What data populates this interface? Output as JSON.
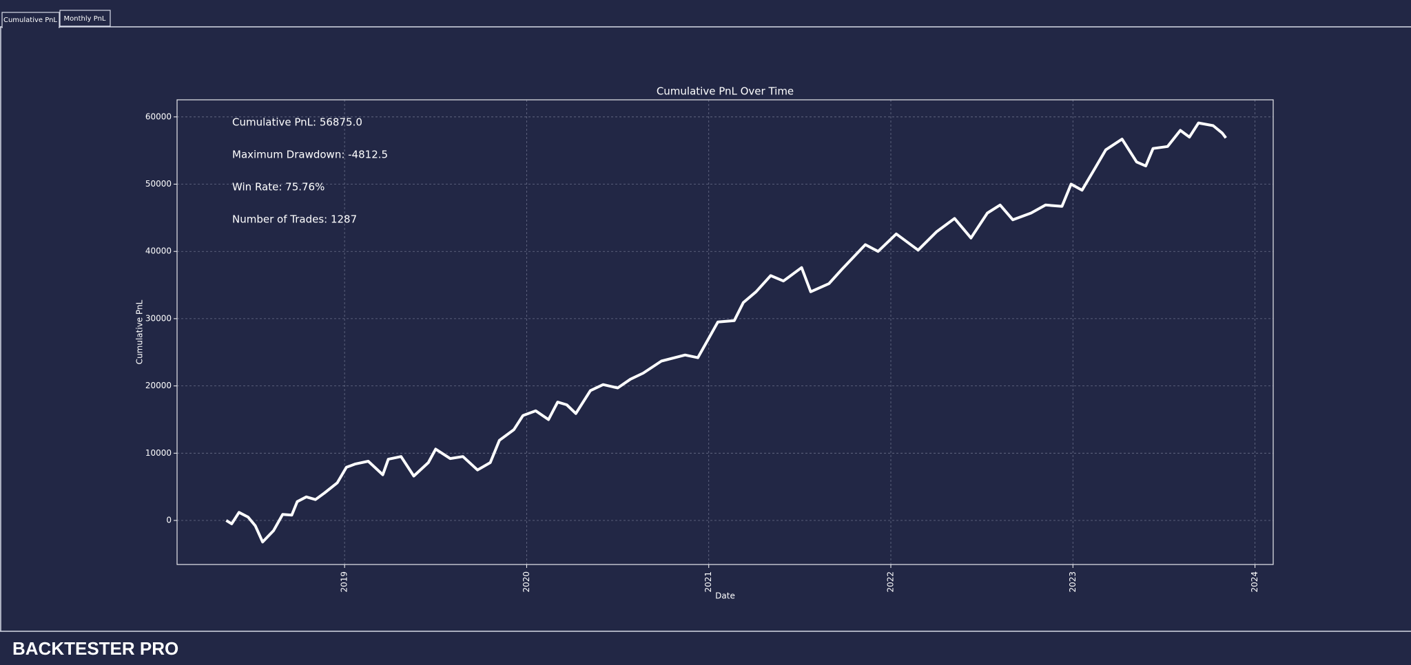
{
  "tabs": [
    "Cumulative PnL",
    "Monthly PnL"
  ],
  "footer": "BACKTESTER PRO",
  "chart_data": {
    "type": "line",
    "title": "Cumulative PnL Over Time",
    "x_label": "Date",
    "y_label": "Cumulative PnL",
    "annotations": [
      "Cumulative PnL: 56875.0",
      "Maximum Drawdown: -4812.5",
      "Win Rate: 75.76%",
      "Number of Trades: 1287"
    ],
    "grid": true,
    "xlim": [
      2018.08,
      2024.1
    ],
    "xticks": [
      2019,
      2020,
      2021,
      2022,
      2023,
      2024
    ],
    "ylim": [
      -6550,
      62540
    ],
    "yticks": [
      0,
      10000,
      20000,
      30000,
      40000,
      50000,
      60000
    ],
    "x": [
      2018.35,
      2018.38,
      2018.42,
      2018.47,
      2018.51,
      2018.55,
      2018.61,
      2018.66,
      2018.71,
      2018.74,
      2018.79,
      2018.84,
      2018.89,
      2018.96,
      2019.01,
      2019.06,
      2019.13,
      2019.21,
      2019.24,
      2019.31,
      2019.38,
      2019.46,
      2019.5,
      2019.58,
      2019.65,
      2019.73,
      2019.8,
      2019.85,
      2019.93,
      2019.98,
      2020.05,
      2020.12,
      2020.17,
      2020.22,
      2020.27,
      2020.35,
      2020.42,
      2020.5,
      2020.57,
      2020.64,
      2020.74,
      2020.87,
      2020.94,
      2020.99,
      2021.05,
      2021.14,
      2021.19,
      2021.26,
      2021.34,
      2021.41,
      2021.51,
      2021.56,
      2021.66,
      2021.73,
      2021.86,
      2021.93,
      2022.03,
      2022.15,
      2022.25,
      2022.35,
      2022.44,
      2022.53,
      2022.6,
      2022.67,
      2022.77,
      2022.85,
      2022.94,
      2022.99,
      2023.05,
      2023.12,
      2023.18,
      2023.27,
      2023.35,
      2023.4,
      2023.44,
      2023.52,
      2023.59,
      2023.64,
      2023.69,
      2023.77,
      2023.82,
      2023.84
    ],
    "series": [
      {
        "name": "Cumulative PnL",
        "color": "#ffffff",
        "values": [
          0,
          -500,
          1200,
          500,
          -800,
          -3200,
          -1500,
          900,
          800,
          2800,
          3500,
          3100,
          4100,
          5600,
          7900,
          8400,
          8800,
          6800,
          9100,
          9500,
          6600,
          8600,
          10600,
          9200,
          9500,
          7500,
          8600,
          11900,
          13500,
          15600,
          16300,
          15000,
          17600,
          17200,
          15900,
          19300,
          20200,
          19700,
          21000,
          21900,
          23700,
          24600,
          24200,
          26600,
          29500,
          29700,
          32400,
          34000,
          36400,
          35600,
          37600,
          34000,
          35200,
          37300,
          41000,
          40000,
          42600,
          40200,
          42900,
          44900,
          42000,
          45700,
          46900,
          44700,
          45700,
          46900,
          46700,
          50000,
          49100,
          52300,
          55100,
          56700,
          53300,
          52700,
          55300,
          55600,
          58000,
          57000,
          59100,
          58700,
          57600,
          56875
        ]
      }
    ]
  }
}
